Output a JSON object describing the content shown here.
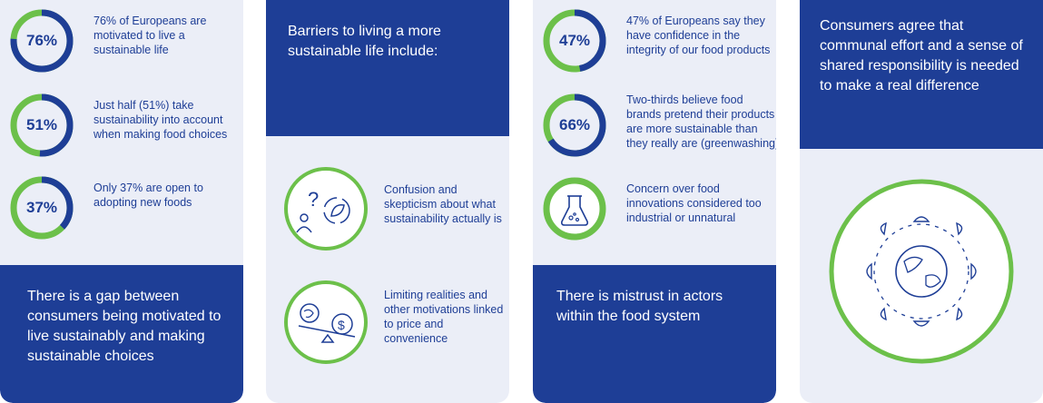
{
  "panel1": {
    "stats": [
      {
        "value": "76%",
        "fraction": 0.76,
        "text": "76% of Europeans are motivated to live a sustainable life"
      },
      {
        "value": "51%",
        "fraction": 0.51,
        "text": "Just half (51%) take sustainability into account when making food choices"
      },
      {
        "value": "37%",
        "fraction": 0.37,
        "text": "Only 37% are open to adopting new foods"
      }
    ],
    "summary": "There is a gap between consumers being motivated to live sustainably and making sustainable choices"
  },
  "panel2": {
    "header": "Barriers to living a more sustainable life include:",
    "items": [
      {
        "icon": "question-leaf-icon",
        "text": "Confusion and skepticism about what sustainability actually is"
      },
      {
        "icon": "scale-globe-dollar-icon",
        "text": "Limiting realities and other motivations linked to price and convenience"
      }
    ]
  },
  "panel3": {
    "stats": [
      {
        "value": "47%",
        "fraction": 0.47,
        "text": "47% of Europeans say they have confidence in the integrity of our food products"
      },
      {
        "value": "66%",
        "fraction": 0.66,
        "text": "Two-thirds believe food brands pretend their products are more sustainable than they really are (greenwashing)"
      }
    ],
    "concern": {
      "icon": "flask-icon",
      "text": "Concern over food innovations considered too industrial or unnatural"
    },
    "summary": "There is mistrust in actors within the food system"
  },
  "panel4": {
    "header": "Consumers agree that communal effort and a sense of shared responsibility is needed to make a real difference",
    "icon": "globe-people-icon"
  },
  "colors": {
    "blue": "#1e3e96",
    "green": "#6cc04a",
    "panel_bg": "#ebeef7"
  }
}
